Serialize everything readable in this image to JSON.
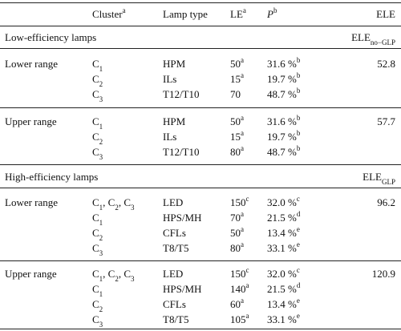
{
  "header": {
    "cluster": "Cluster",
    "cluster_sup": "a",
    "lamp_type": "Lamp type",
    "le": "LE",
    "le_sup": "a",
    "p": "P",
    "p_sup": "b",
    "ele": "ELE"
  },
  "sections": [
    {
      "title": "Low-efficiency lamps",
      "ele_label": "ELE",
      "ele_sub": "no−GLP",
      "groups": [
        {
          "range": "Lower range",
          "ele": "52.8",
          "rows": [
            {
              "cluster": "C",
              "cluster_sub": "1",
              "lamp": "HPM",
              "le": "50",
              "le_sup": "a",
              "p": "31.6 %",
              "p_sup": "b"
            },
            {
              "cluster": "C",
              "cluster_sub": "2",
              "lamp": "ILs",
              "le": "15",
              "le_sup": "a",
              "p": "19.7 %",
              "p_sup": "b"
            },
            {
              "cluster": "C",
              "cluster_sub": "3",
              "lamp": "T12/T10",
              "le": "70",
              "le_sup": "",
              "p": "48.7 %",
              "p_sup": "b"
            }
          ]
        },
        {
          "range": "Upper range",
          "ele": "57.7",
          "rows": [
            {
              "cluster": "C",
              "cluster_sub": "1",
              "lamp": "HPM",
              "le": "50",
              "le_sup": "a",
              "p": "31.6 %",
              "p_sup": "b"
            },
            {
              "cluster": "C",
              "cluster_sub": "2",
              "lamp": "ILs",
              "le": "15",
              "le_sup": "a",
              "p": "19.7 %",
              "p_sup": "b"
            },
            {
              "cluster": "C",
              "cluster_sub": "3",
              "lamp": "T12/T10",
              "le": "80",
              "le_sup": "a",
              "p": "48.7 %",
              "p_sup": "b"
            }
          ]
        }
      ]
    },
    {
      "title": "High-efficiency lamps",
      "ele_label": "ELE",
      "ele_sub": "GLP",
      "groups": [
        {
          "range": "Lower range",
          "ele": "96.2",
          "rows": [
            {
              "cluster": "C1, C2, C3",
              "cluster_sub": "",
              "lamp": "LED",
              "le": "150",
              "le_sup": "c",
              "p": "32.0 %",
              "p_sup": "c"
            },
            {
              "cluster": "C",
              "cluster_sub": "1",
              "lamp": "HPS/MH",
              "le": "70",
              "le_sup": "a",
              "p": "21.5 %",
              "p_sup": "d"
            },
            {
              "cluster": "C",
              "cluster_sub": "2",
              "lamp": "CFLs",
              "le": "50",
              "le_sup": "a",
              "p": "13.4 %",
              "p_sup": "e"
            },
            {
              "cluster": "C",
              "cluster_sub": "3",
              "lamp": "T8/T5",
              "le": "80",
              "le_sup": "a",
              "p": "33.1 %",
              "p_sup": "e"
            }
          ]
        },
        {
          "range": "Upper range",
          "ele": "120.9",
          "rows": [
            {
              "cluster": "C1, C2, C3",
              "cluster_sub": "",
              "lamp": "LED",
              "le": "150",
              "le_sup": "c",
              "p": "32.0 %",
              "p_sup": "c"
            },
            {
              "cluster": "C",
              "cluster_sub": "1",
              "lamp": "HPS/MH",
              "le": "140",
              "le_sup": "a",
              "p": "21.5 %",
              "p_sup": "d"
            },
            {
              "cluster": "C",
              "cluster_sub": "2",
              "lamp": "CFLs",
              "le": "60",
              "le_sup": "a",
              "p": "13.4 %",
              "p_sup": "e"
            },
            {
              "cluster": "C",
              "cluster_sub": "3",
              "lamp": "T8/T5",
              "le": "105",
              "le_sup": "a",
              "p": "33.1 %",
              "p_sup": "e"
            }
          ]
        }
      ]
    }
  ]
}
